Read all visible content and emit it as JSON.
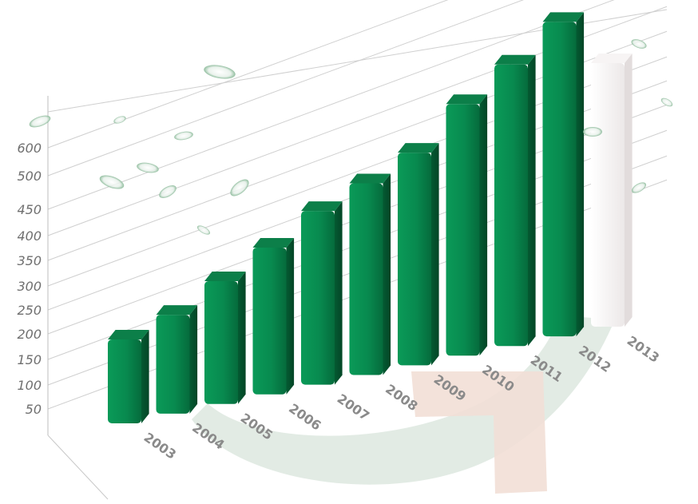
{
  "chart_data": {
    "type": "bar",
    "title": "",
    "xlabel": "",
    "ylabel": "",
    "categories": [
      "2003",
      "2004",
      "2005",
      "2006",
      "2007",
      "2008",
      "2009",
      "2010",
      "2011",
      "2012",
      "2013"
    ],
    "values": [
      140,
      165,
      205,
      245,
      290,
      320,
      355,
      420,
      470,
      525,
      null
    ],
    "y_ticks": [
      "50",
      "100",
      "150",
      "200",
      "250",
      "300",
      "350",
      "400",
      "450",
      "500",
      "600"
    ],
    "ylim": [
      0,
      600
    ],
    "grid": true,
    "legend": "none",
    "bar_color": "#08844c",
    "placeholder_color": "#f1eded",
    "arrow_green": "#dfe9e1",
    "arrow_peach": "#f2dfd6"
  }
}
